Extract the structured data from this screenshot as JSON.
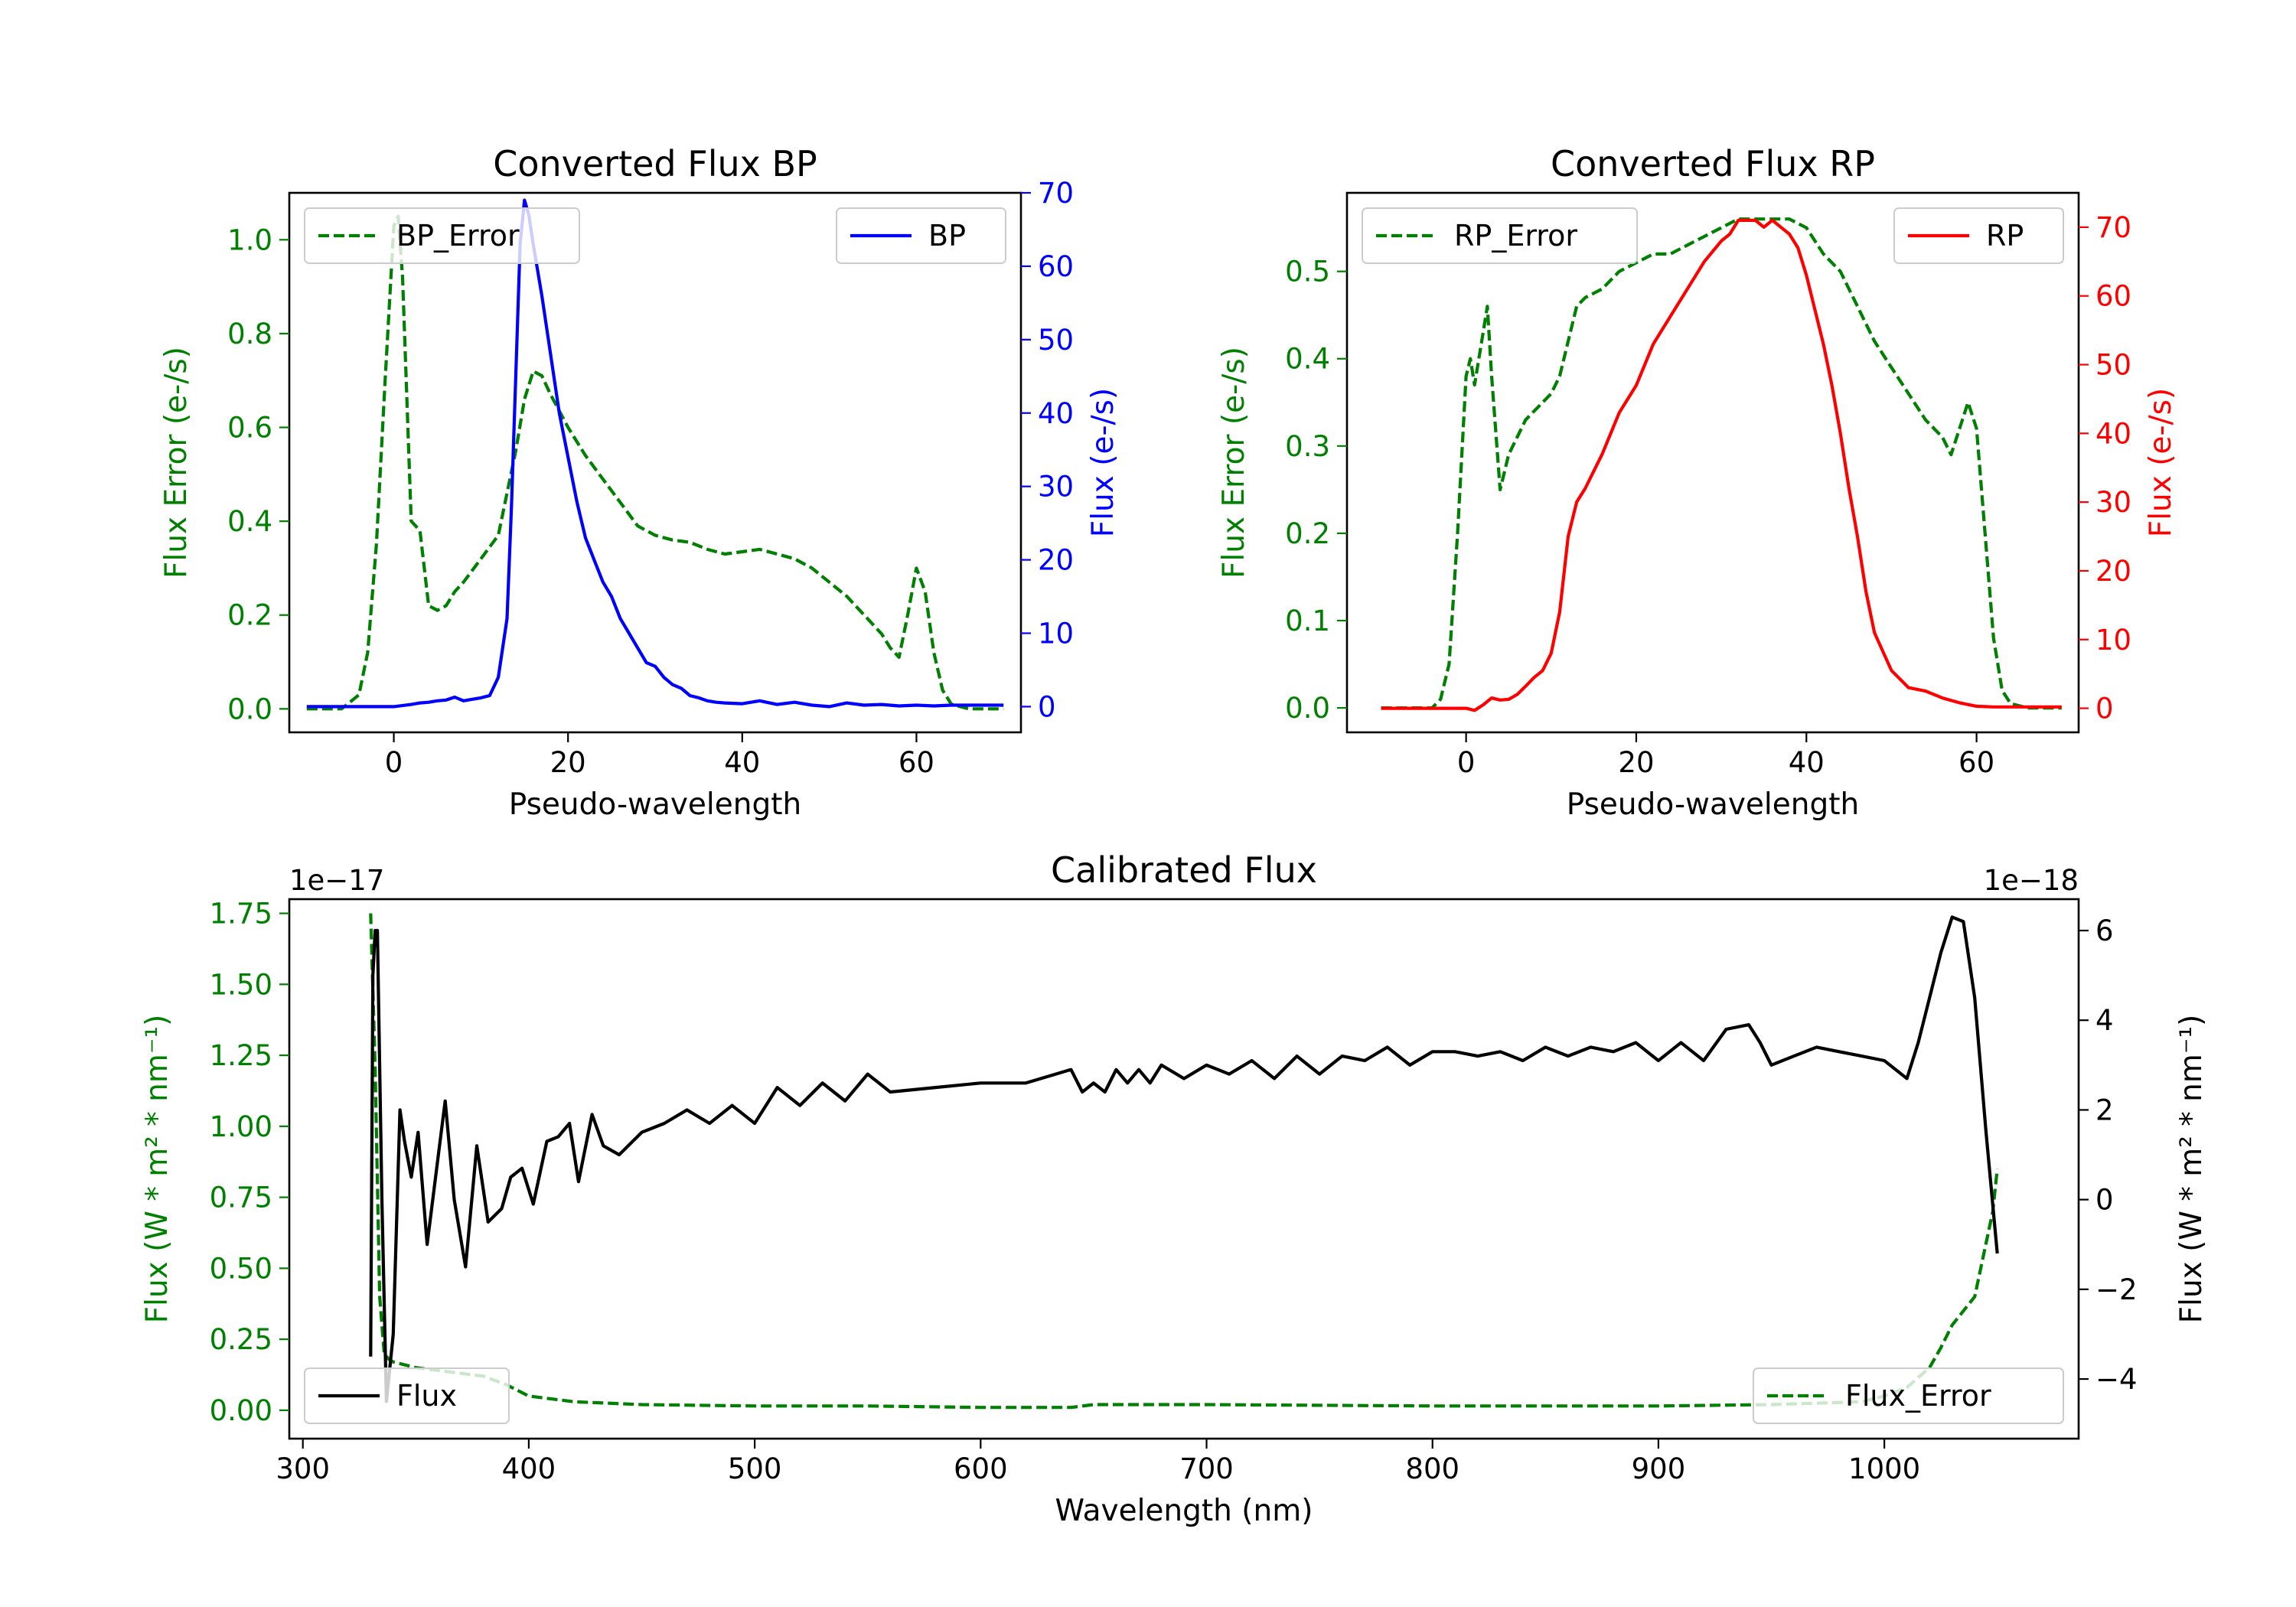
{
  "chart_data": [
    {
      "id": "bp",
      "type": "line",
      "title": "Converted Flux BP",
      "xlabel": "Pseudo-wavelength",
      "ylabel_left": "Flux Error (e-/s)",
      "ylabel_right": "Flux (e-/s)",
      "xlim": [
        -12,
        72
      ],
      "ylim_left": [
        -0.05,
        1.1
      ],
      "ylim_right": [
        -3.5,
        70
      ],
      "xticks": [
        0,
        20,
        40,
        60
      ],
      "yticks_left": [
        0.0,
        0.2,
        0.4,
        0.6,
        0.8,
        1.0
      ],
      "yticks_right": [
        0,
        10,
        20,
        30,
        40,
        50,
        60,
        70
      ],
      "left_color": "#008000",
      "right_color": "#0000ff",
      "legend_left": {
        "label": "BP_Error",
        "placement": "upper left"
      },
      "legend_right": {
        "label": "BP",
        "placement": "upper right"
      },
      "series": [
        {
          "name": "BP_Error",
          "axis": "left",
          "color": "#008000",
          "dash": true,
          "x": [
            -10,
            -6,
            -4,
            -3,
            -2,
            -1,
            0,
            0.5,
            1,
            2,
            3,
            4,
            5,
            6,
            7,
            8,
            10,
            12,
            14,
            15,
            16,
            17,
            18,
            20,
            22,
            24,
            26,
            28,
            30,
            32,
            34,
            36,
            38,
            40,
            42,
            44,
            46,
            48,
            50,
            52,
            54,
            56,
            57,
            58,
            59,
            60,
            61,
            62,
            63,
            64,
            66,
            70
          ],
          "y": [
            0,
            0,
            0.03,
            0.12,
            0.35,
            0.7,
            1.03,
            1.05,
            0.92,
            0.4,
            0.38,
            0.22,
            0.21,
            0.22,
            0.25,
            0.27,
            0.32,
            0.37,
            0.55,
            0.66,
            0.72,
            0.71,
            0.67,
            0.6,
            0.54,
            0.49,
            0.44,
            0.39,
            0.37,
            0.36,
            0.355,
            0.34,
            0.33,
            0.335,
            0.34,
            0.33,
            0.32,
            0.3,
            0.27,
            0.24,
            0.2,
            0.16,
            0.13,
            0.11,
            0.2,
            0.3,
            0.25,
            0.12,
            0.04,
            0.01,
            0,
            0
          ]
        },
        {
          "name": "BP",
          "axis": "right",
          "color": "#0000ff",
          "dash": false,
          "x": [
            -10,
            0,
            2,
            3,
            4,
            5,
            6,
            7,
            8,
            9,
            10,
            11,
            12,
            13,
            13.5,
            14,
            14.5,
            15,
            15.5,
            16,
            17,
            18,
            19,
            20,
            21,
            22,
            23,
            24,
            25,
            26,
            27,
            28,
            29,
            30,
            31,
            32,
            33,
            34,
            35,
            36,
            37,
            38,
            40,
            42,
            44,
            46,
            48,
            50,
            52,
            54,
            56,
            58,
            60,
            62,
            64,
            66,
            70
          ],
          "y": [
            0,
            0,
            0.3,
            0.5,
            0.6,
            0.8,
            0.9,
            1.3,
            0.8,
            1,
            1.2,
            1.5,
            4,
            12,
            27,
            45,
            63,
            69,
            67,
            63,
            56,
            48,
            40,
            34,
            28,
            23,
            20,
            17,
            15,
            12,
            10,
            8,
            6,
            5.5,
            4,
            3,
            2.5,
            1.5,
            1.2,
            0.8,
            0.6,
            0.5,
            0.4,
            0.8,
            0.3,
            0.6,
            0.2,
            0,
            0.5,
            0.2,
            0.3,
            0.1,
            0.2,
            0.1,
            0.2,
            0.2,
            0.2
          ]
        }
      ]
    },
    {
      "id": "rp",
      "type": "line",
      "title": "Converted Flux RP",
      "xlabel": "Pseudo-wavelength",
      "ylabel_left": "Flux Error (e-/s)",
      "ylabel_right": "Flux (e-/s)",
      "xlim": [
        -14,
        72
      ],
      "ylim_left": [
        -0.028,
        0.59
      ],
      "ylim_right": [
        -3.5,
        75
      ],
      "xticks": [
        0,
        20,
        40,
        60
      ],
      "yticks_left": [
        0.0,
        0.1,
        0.2,
        0.3,
        0.4,
        0.5
      ],
      "yticks_right": [
        0,
        10,
        20,
        30,
        40,
        50,
        60,
        70
      ],
      "left_color": "#008000",
      "right_color": "#ff0000",
      "legend_left": {
        "label": "RP_Error",
        "placement": "upper left"
      },
      "legend_right": {
        "label": "RP",
        "placement": "upper right"
      },
      "series": [
        {
          "name": "RP_Error",
          "axis": "left",
          "color": "#008000",
          "dash": true,
          "x": [
            -10,
            -4,
            -3,
            -2,
            -1,
            0,
            0.5,
            1,
            1.5,
            2,
            2.5,
            3,
            4,
            5,
            6,
            7,
            8,
            9,
            10,
            11,
            12,
            13,
            14,
            16,
            18,
            20,
            22,
            24,
            26,
            28,
            30,
            32,
            34,
            36,
            38,
            40,
            42,
            44,
            46,
            48,
            50,
            52,
            54,
            56,
            57,
            58,
            59,
            60,
            61,
            62,
            63,
            64,
            66,
            70
          ],
          "y": [
            0,
            0,
            0.01,
            0.05,
            0.2,
            0.38,
            0.4,
            0.37,
            0.4,
            0.43,
            0.46,
            0.38,
            0.25,
            0.29,
            0.31,
            0.33,
            0.34,
            0.35,
            0.36,
            0.38,
            0.42,
            0.46,
            0.47,
            0.48,
            0.5,
            0.51,
            0.52,
            0.52,
            0.53,
            0.54,
            0.55,
            0.56,
            0.56,
            0.56,
            0.56,
            0.55,
            0.52,
            0.5,
            0.46,
            0.42,
            0.39,
            0.36,
            0.33,
            0.31,
            0.29,
            0.32,
            0.35,
            0.32,
            0.2,
            0.08,
            0.02,
            0.005,
            0,
            0
          ]
        },
        {
          "name": "RP",
          "axis": "right",
          "color": "#ff0000",
          "dash": false,
          "x": [
            -10,
            -4,
            0,
            1,
            2,
            3,
            4,
            5,
            6,
            7,
            8,
            9,
            10,
            11,
            12,
            13,
            14,
            16,
            18,
            20,
            22,
            24,
            26,
            28,
            30,
            31,
            32,
            33,
            34,
            35,
            36,
            37,
            38,
            39,
            40,
            41,
            42,
            43,
            44,
            45,
            46,
            47,
            48,
            50,
            52,
            54,
            56,
            58,
            60,
            62,
            64,
            66,
            70
          ],
          "y": [
            0,
            0,
            0,
            -0.3,
            0.5,
            1.5,
            1.2,
            1.3,
            2,
            3.2,
            4.5,
            5.5,
            8,
            14,
            25,
            30,
            32,
            37,
            43,
            47,
            53,
            57,
            61,
            65,
            68,
            69,
            71,
            71,
            71,
            70,
            71,
            70,
            69,
            67,
            63,
            58,
            53,
            47,
            40,
            32,
            25,
            17,
            11,
            5.5,
            3,
            2.5,
            1.5,
            0.8,
            0.3,
            0.2,
            0.2,
            0.2,
            0.2
          ]
        }
      ]
    },
    {
      "id": "cal",
      "type": "line",
      "title": "Calibrated Flux",
      "xlabel": "Wavelength (nm)",
      "ylabel_left": "Flux (W * m² * nm⁻¹)",
      "ylabel_right": "Flux (W * m² * nm⁻¹)",
      "offset_left": "1e−17",
      "offset_right": "1e−18",
      "xlim": [
        294,
        1086
      ],
      "ylim_left": [
        -0.1,
        1.8
      ],
      "ylim_right": [
        -5.33,
        6.7
      ],
      "xticks": [
        300,
        400,
        500,
        600,
        700,
        800,
        900,
        1000
      ],
      "yticks_left": [
        0.0,
        0.25,
        0.5,
        0.75,
        1.0,
        1.25,
        1.5,
        1.75
      ],
      "yticks_right": [
        -4,
        -2,
        0,
        2,
        4,
        6
      ],
      "left_color": "#008000",
      "right_color": "#000000",
      "legend_left": {
        "label": "Flux",
        "placement": "lower left"
      },
      "legend_right": {
        "label": "Flux_Error",
        "placement": "lower right"
      },
      "series": [
        {
          "name": "Flux_Error",
          "axis": "left",
          "color": "#008000",
          "dash": true,
          "x": [
            330,
            332,
            334,
            336,
            338,
            340,
            350,
            360,
            370,
            380,
            390,
            400,
            420,
            450,
            500,
            550,
            600,
            620,
            640,
            650,
            700,
            800,
            900,
            950,
            990,
            1000,
            1010,
            1020,
            1025,
            1030,
            1040,
            1048,
            1050
          ],
          "y": [
            1.75,
            1.2,
            0.4,
            0.2,
            0.18,
            0.17,
            0.15,
            0.14,
            0.13,
            0.12,
            0.09,
            0.05,
            0.03,
            0.02,
            0.015,
            0.015,
            0.01,
            0.01,
            0.01,
            0.02,
            0.02,
            0.015,
            0.015,
            0.02,
            0.03,
            0.05,
            0.08,
            0.15,
            0.22,
            0.3,
            0.4,
            0.7,
            0.85
          ]
        },
        {
          "name": "Flux",
          "axis": "right",
          "color": "#000000",
          "dash": false,
          "x": [
            330,
            331,
            332,
            333,
            335,
            337,
            340,
            343,
            345,
            348,
            351,
            355,
            360,
            363,
            367,
            372,
            377,
            382,
            388,
            392,
            397,
            402,
            408,
            413,
            418,
            422,
            428,
            433,
            440,
            450,
            460,
            470,
            480,
            490,
            500,
            510,
            520,
            530,
            540,
            550,
            560,
            580,
            600,
            620,
            640,
            645,
            650,
            655,
            660,
            665,
            670,
            675,
            680,
            690,
            700,
            710,
            720,
            730,
            740,
            750,
            760,
            770,
            780,
            790,
            800,
            810,
            820,
            830,
            840,
            850,
            860,
            870,
            880,
            890,
            900,
            910,
            920,
            930,
            940,
            945,
            950,
            960,
            970,
            980,
            990,
            1000,
            1010,
            1015,
            1020,
            1025,
            1030,
            1035,
            1040,
            1045,
            1050
          ],
          "y": [
            -3.5,
            5,
            6,
            6,
            0,
            -4.5,
            -3,
            2,
            1.3,
            0.5,
            1.5,
            -1,
            1,
            2.2,
            0,
            -1.5,
            1.2,
            -0.5,
            -0.2,
            0.5,
            0.7,
            -0.1,
            1.3,
            1.4,
            1.7,
            0.4,
            1.9,
            1.2,
            1,
            1.5,
            1.7,
            2,
            1.7,
            2.1,
            1.7,
            2.5,
            2.1,
            2.6,
            2.2,
            2.8,
            2.4,
            2.5,
            2.6,
            2.6,
            2.9,
            2.4,
            2.6,
            2.4,
            2.9,
            2.6,
            2.9,
            2.6,
            3,
            2.7,
            3,
            2.8,
            3.1,
            2.7,
            3.2,
            2.8,
            3.2,
            3.1,
            3.4,
            3.0,
            3.3,
            3.3,
            3.2,
            3.3,
            3.1,
            3.4,
            3.2,
            3.4,
            3.3,
            3.5,
            3.1,
            3.5,
            3.1,
            3.8,
            3.9,
            3.5,
            3.0,
            3.2,
            3.4,
            3.3,
            3.2,
            3.1,
            2.7,
            3.5,
            4.5,
            5.5,
            6.3,
            6.2,
            4.5,
            1.5,
            -1.2
          ]
        }
      ]
    }
  ]
}
